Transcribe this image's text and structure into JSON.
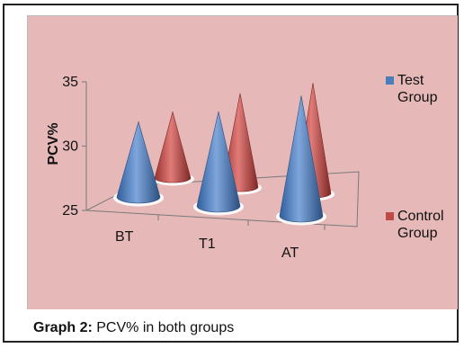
{
  "chart_data": {
    "type": "bar",
    "style": "3d-cone",
    "categories": [
      "BT",
      "T1",
      "AT"
    ],
    "series": [
      {
        "name": "Test Group",
        "values": [
          30.0,
          31.5,
          33.5
        ],
        "color": "#4a7ebb"
      },
      {
        "name": "Control Group",
        "values": [
          30.0,
          32.5,
          34.0
        ],
        "color": "#be4b48"
      }
    ],
    "ylabel": "PCV%",
    "ylim": [
      25,
      35
    ],
    "yticks": [
      "25",
      "30",
      "35"
    ],
    "legend_position": "right",
    "grid": false
  },
  "legend": {
    "test": {
      "line1": "Test",
      "line2": "Group"
    },
    "control": {
      "line1": "Control",
      "line2": "Group"
    }
  },
  "caption": {
    "label": "Graph 2:",
    "text": " PCV% in both groups"
  },
  "colors": {
    "plot_background": "#e6b9b8",
    "test": "#4a7ebb",
    "control": "#be4b48"
  }
}
